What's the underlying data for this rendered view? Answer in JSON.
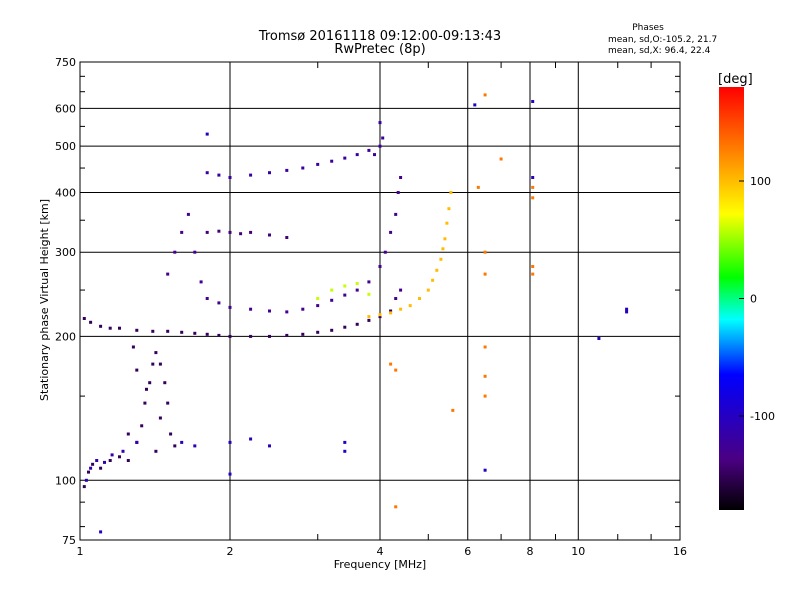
{
  "chart_data": {
    "type": "scatter",
    "title": "Tromsø 20161118 09:12:00-09:13:43",
    "subtitle": "RwPretec (8p)",
    "xlabel": "Frequency [MHz]",
    "ylabel": "Stationary phase Virtual Height [km]",
    "x_scale": "log",
    "y_scale": "log",
    "xlim": [
      1,
      16
    ],
    "ylim": [
      75,
      750
    ],
    "x_ticks": [
      1,
      2,
      4,
      6,
      8,
      10,
      16
    ],
    "x_tick_labels": [
      "1",
      "2",
      "4",
      "6",
      "8",
      "10",
      "16"
    ],
    "x_gridlines": [
      2,
      4,
      6,
      8,
      10
    ],
    "y_ticks": [
      75,
      100,
      200,
      300,
      400,
      500,
      600,
      750
    ],
    "y_tick_labels": [
      "75",
      "100",
      "200",
      "300",
      "400",
      "500",
      "600",
      "750"
    ],
    "y_gridlines": [
      100,
      200,
      300,
      400,
      500,
      600
    ],
    "grid": true,
    "colorbar": {
      "label": "[deg]",
      "range": [
        -180,
        180
      ],
      "ticks": [
        100,
        0,
        -100
      ],
      "tick_labels": [
        "100",
        "0",
        "-100"
      ]
    },
    "stats": {
      "title": "Phases",
      "line1": "mean, sd,O:-105.2, 21.7",
      "line2": "mean, sd,X:  96.4, 22.4"
    },
    "series": [
      {
        "trace": "low_layer",
        "phase": -150,
        "points": [
          [
            1.02,
            97
          ],
          [
            1.04,
            104
          ],
          [
            1.06,
            108
          ],
          [
            1.1,
            106
          ],
          [
            1.15,
            110
          ],
          [
            1.2,
            112
          ],
          [
            1.25,
            110
          ],
          [
            1.3,
            120
          ],
          [
            1.33,
            130
          ],
          [
            1.35,
            145
          ],
          [
            1.38,
            160
          ],
          [
            1.4,
            175
          ],
          [
            1.42,
            185
          ],
          [
            1.45,
            175
          ],
          [
            1.48,
            160
          ],
          [
            1.5,
            145
          ],
          [
            1.52,
            125
          ],
          [
            1.55,
            118
          ],
          [
            1.45,
            135
          ],
          [
            1.42,
            115
          ],
          [
            1.36,
            155
          ],
          [
            1.3,
            170
          ],
          [
            1.28,
            190
          ],
          [
            1.25,
            125
          ]
        ]
      },
      {
        "trace": "low_layer_echo",
        "phase": -110,
        "points": [
          [
            1.03,
            100
          ],
          [
            1.05,
            106
          ],
          [
            1.08,
            110
          ],
          [
            1.12,
            109
          ],
          [
            1.16,
            113
          ],
          [
            1.22,
            115
          ],
          [
            1.3,
            120
          ]
        ]
      },
      {
        "trace": "o_base",
        "phase": -150,
        "points": [
          [
            1.02,
            218
          ],
          [
            1.05,
            214
          ],
          [
            1.1,
            210
          ],
          [
            1.15,
            208
          ],
          [
            1.2,
            208
          ],
          [
            1.3,
            206
          ],
          [
            1.4,
            205
          ],
          [
            1.5,
            205
          ],
          [
            1.6,
            204
          ],
          [
            1.7,
            203
          ],
          [
            1.8,
            202
          ],
          [
            1.9,
            201
          ],
          [
            2.0,
            200
          ],
          [
            2.2,
            200
          ],
          [
            2.4,
            200
          ],
          [
            2.6,
            201
          ],
          [
            2.8,
            202
          ],
          [
            3.0,
            204
          ],
          [
            3.2,
            206
          ],
          [
            3.4,
            209
          ],
          [
            3.6,
            212
          ],
          [
            3.8,
            216
          ],
          [
            4.0,
            220
          ],
          [
            4.2,
            226
          ]
        ]
      },
      {
        "trace": "o_spread",
        "phase": -130,
        "points": [
          [
            1.5,
            270
          ],
          [
            1.55,
            300
          ],
          [
            1.6,
            330
          ],
          [
            1.65,
            360
          ],
          [
            1.7,
            300
          ],
          [
            1.75,
            260
          ],
          [
            1.8,
            240
          ],
          [
            1.9,
            235
          ],
          [
            2.0,
            230
          ],
          [
            2.2,
            228
          ],
          [
            2.4,
            226
          ],
          [
            2.6,
            225
          ],
          [
            2.8,
            228
          ],
          [
            3.0,
            232
          ],
          [
            3.2,
            238
          ],
          [
            3.4,
            244
          ],
          [
            3.6,
            250
          ],
          [
            3.8,
            260
          ],
          [
            4.0,
            280
          ],
          [
            4.1,
            300
          ],
          [
            4.2,
            330
          ],
          [
            4.3,
            360
          ],
          [
            4.35,
            400
          ],
          [
            4.4,
            430
          ],
          [
            4.4,
            250
          ],
          [
            4.3,
            240
          ]
        ]
      },
      {
        "trace": "o_echo_330",
        "phase": -140,
        "points": [
          [
            1.8,
            330
          ],
          [
            1.9,
            332
          ],
          [
            2.0,
            330
          ],
          [
            2.1,
            328
          ],
          [
            2.2,
            330
          ],
          [
            2.4,
            326
          ],
          [
            2.6,
            322
          ]
        ]
      },
      {
        "trace": "o_echo_430",
        "phase": -120,
        "points": [
          [
            1.8,
            440
          ],
          [
            1.9,
            435
          ],
          [
            2.0,
            430
          ],
          [
            2.2,
            435
          ],
          [
            2.4,
            440
          ],
          [
            2.6,
            445
          ],
          [
            2.8,
            450
          ],
          [
            3.0,
            458
          ],
          [
            3.2,
            465
          ],
          [
            3.4,
            472
          ],
          [
            3.6,
            480
          ],
          [
            3.8,
            490
          ],
          [
            4.0,
            500
          ],
          [
            4.05,
            520
          ],
          [
            4.0,
            560
          ],
          [
            3.9,
            480
          ]
        ]
      },
      {
        "trace": "x_mode",
        "phase": 100,
        "points": [
          [
            3.8,
            220
          ],
          [
            4.0,
            222
          ],
          [
            4.2,
            224
          ],
          [
            4.4,
            228
          ],
          [
            4.6,
            232
          ],
          [
            4.8,
            240
          ],
          [
            5.0,
            250
          ],
          [
            5.1,
            262
          ],
          [
            5.2,
            275
          ],
          [
            5.3,
            290
          ],
          [
            5.35,
            305
          ],
          [
            5.4,
            320
          ],
          [
            5.45,
            345
          ],
          [
            5.5,
            370
          ],
          [
            5.55,
            400
          ]
        ]
      },
      {
        "trace": "x_mode_mid",
        "phase": 60,
        "points": [
          [
            3.0,
            240
          ],
          [
            3.2,
            250
          ],
          [
            3.4,
            255
          ],
          [
            3.6,
            258
          ],
          [
            3.8,
            245
          ]
        ]
      },
      {
        "trace": "mid_echo",
        "phase": -105,
        "points": [
          [
            2.0,
            120
          ],
          [
            2.2,
            122
          ],
          [
            2.4,
            118
          ],
          [
            1.6,
            120
          ],
          [
            1.7,
            118
          ]
        ]
      },
      {
        "trace": "sparse",
        "phase": 130,
        "points": [
          [
            6.5,
            640
          ],
          [
            6.5,
            300
          ],
          [
            6.5,
            270
          ],
          [
            6.5,
            190
          ],
          [
            6.5,
            165
          ],
          [
            6.5,
            150
          ],
          [
            7.0,
            470
          ],
          [
            6.3,
            410
          ],
          [
            8.1,
            410
          ],
          [
            8.1,
            390
          ],
          [
            8.1,
            280
          ],
          [
            8.1,
            270
          ],
          [
            4.3,
            88
          ],
          [
            4.3,
            170
          ],
          [
            4.2,
            175
          ],
          [
            5.6,
            140
          ]
        ]
      },
      {
        "trace": "sparse_blue",
        "phase": -100,
        "points": [
          [
            8.1,
            620
          ],
          [
            8.1,
            430
          ],
          [
            6.5,
            105
          ],
          [
            3.4,
            120
          ],
          [
            3.4,
            115
          ],
          [
            11,
            198
          ],
          [
            12.5,
            228
          ],
          [
            12.5,
            225
          ],
          [
            2.0,
            103
          ],
          [
            1.1,
            78
          ],
          [
            1.8,
            530
          ],
          [
            6.2,
            610
          ]
        ]
      }
    ]
  }
}
